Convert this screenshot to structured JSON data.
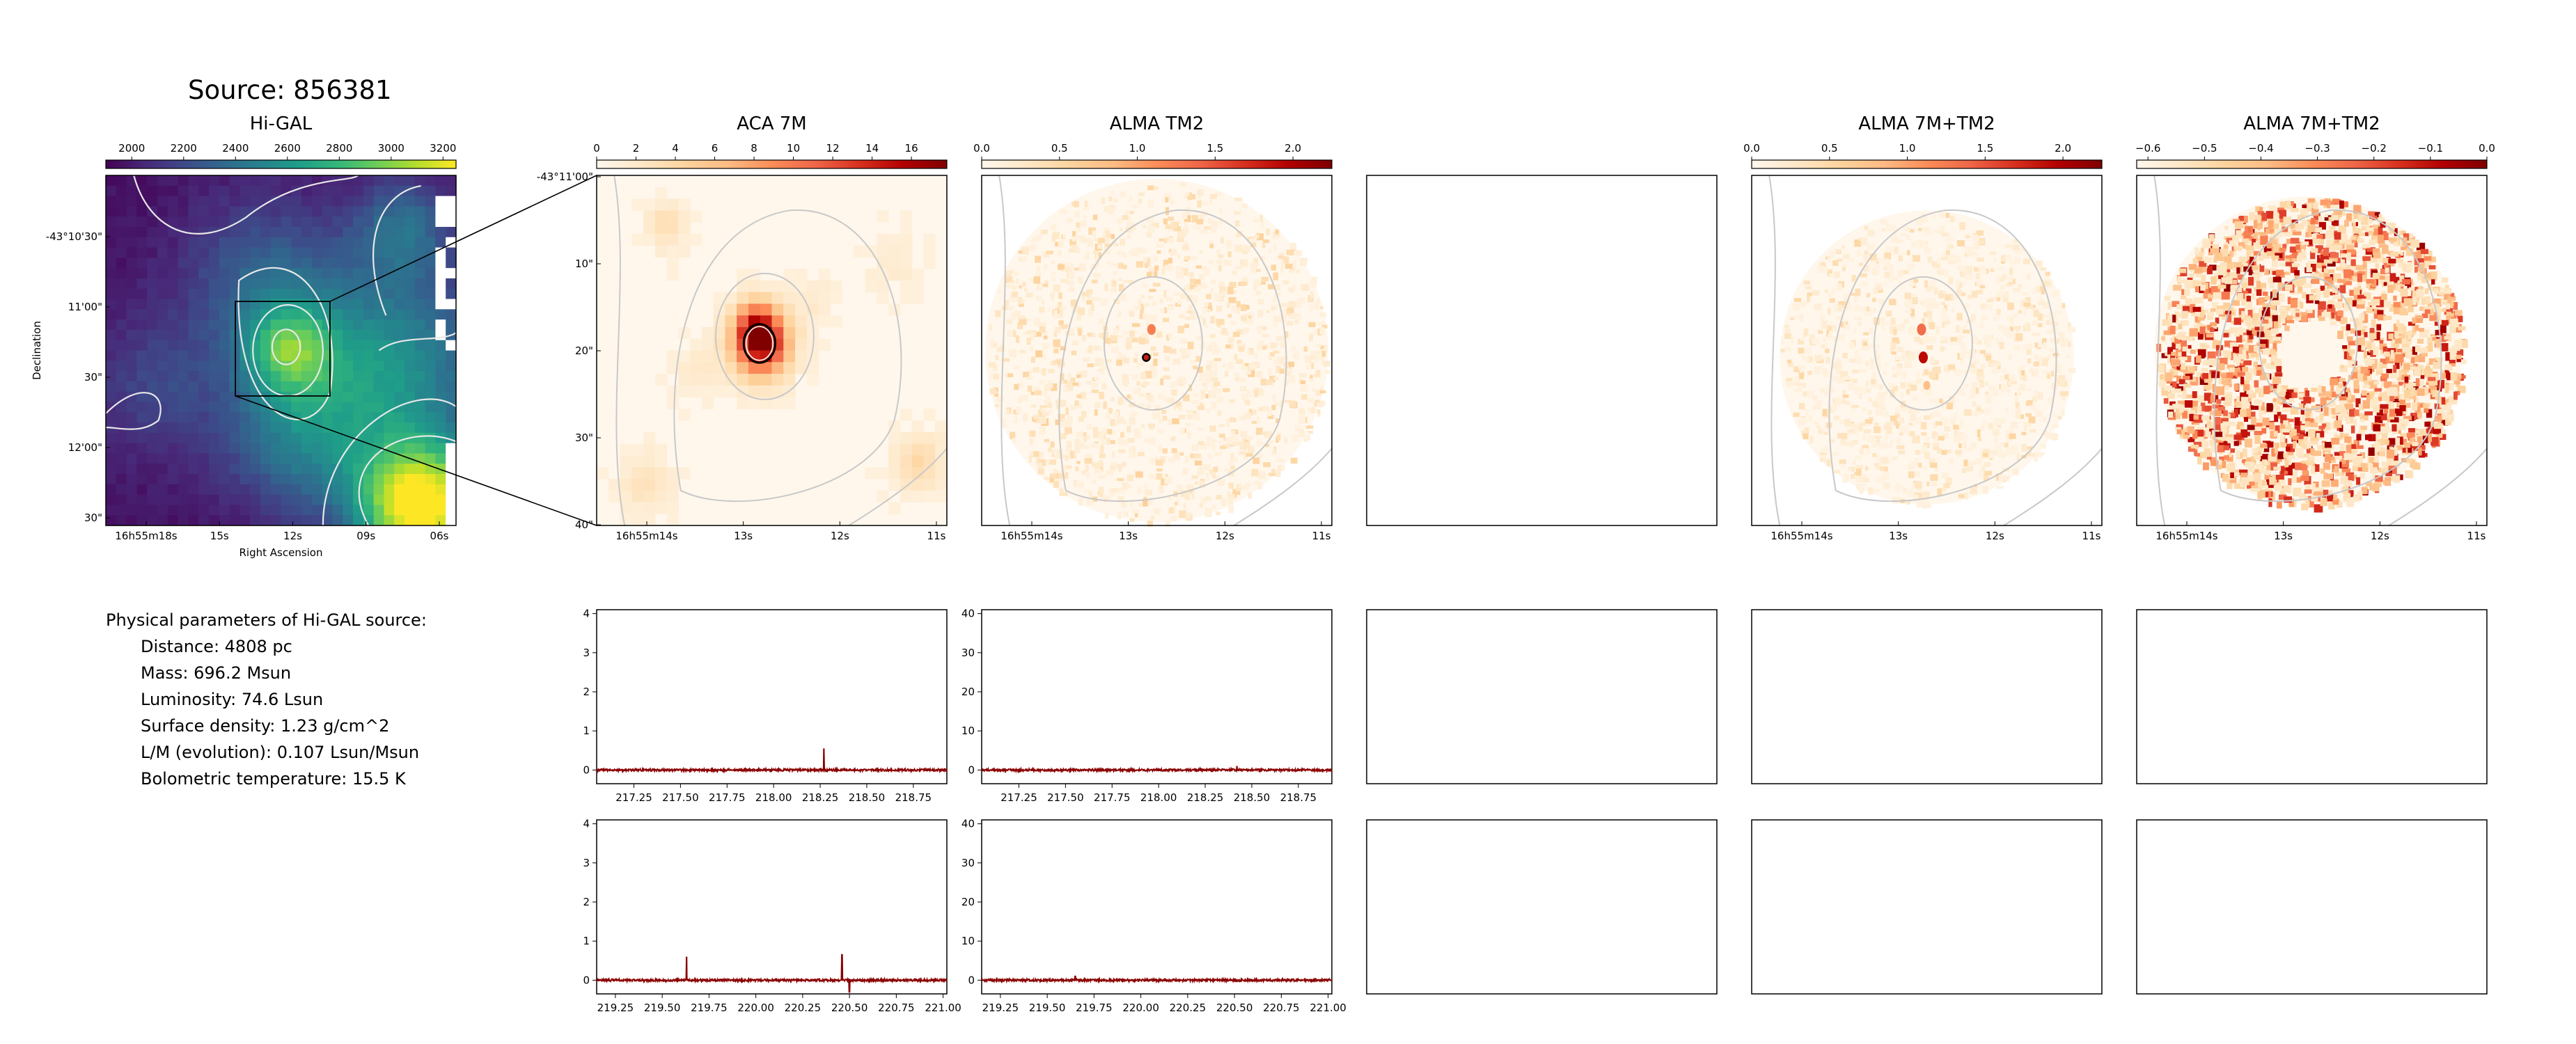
{
  "source_title": "Source: 856381",
  "params": {
    "heading": "Physical parameters of Hi-GAL source:",
    "rows": [
      "Distance: 4808 pc",
      "Mass: 696.2 Msun",
      "Luminosity: 74.6 Lsun",
      "Surface density: 1.23 g/cm^2",
      "L/M (evolution): 0.107 Lsun/Msun",
      "Bolometric temperature: 15.5 K"
    ]
  },
  "colors": {
    "viridis": [
      "#440154",
      "#482878",
      "#3e4989",
      "#31688e",
      "#26828e",
      "#1f9e89",
      "#35b779",
      "#6ece58",
      "#b5de2b",
      "#fde725"
    ],
    "orrd": [
      "#fff7ec",
      "#fee8c8",
      "#fdd49e",
      "#fdbb84",
      "#fc8d59",
      "#ef6548",
      "#d7301f",
      "#b30000",
      "#7f0000"
    ],
    "spectrum_line": "#8b0000",
    "contour_light": "#c8c8c8",
    "contour_white": "#e8e8e8"
  },
  "chart_data": [
    {
      "type": "heatmap",
      "panel": "higal",
      "title": "Hi-GAL",
      "xlabel": "Right Ascension",
      "ylabel": "Declination",
      "colorbar_ticks": [
        "2000",
        "2200",
        "2400",
        "2600",
        "2800",
        "3000",
        "3200"
      ],
      "colorbar_range": [
        1900,
        3250
      ],
      "x_ticks": [
        "16h55m18s",
        "15s",
        "12s",
        "09s",
        "06s"
      ],
      "y_ticks": [
        "-43°10'30\"",
        "11'00\"",
        "30\"",
        "12'00\"",
        "30\""
      ]
    },
    {
      "type": "heatmap",
      "panel": "aca7m",
      "title": "ACA 7M",
      "colorbar_ticks": [
        "0",
        "2",
        "4",
        "6",
        "8",
        "10",
        "12",
        "14",
        "16"
      ],
      "colorbar_range": [
        0,
        17.8
      ],
      "x_ticks": [
        "16h55m14s",
        "13s",
        "12s",
        "11s"
      ],
      "y_ticks": [
        "-43°11'00\"",
        "10\"",
        "20\"",
        "30\"",
        "40\""
      ]
    },
    {
      "type": "heatmap",
      "panel": "tm2",
      "title": "ALMA TM2",
      "colorbar_ticks": [
        "0.0",
        "0.5",
        "1.0",
        "1.5",
        "2.0"
      ],
      "colorbar_range": [
        0,
        2.25
      ],
      "x_ticks": [
        "16h55m14s",
        "13s",
        "12s",
        "11s"
      ]
    },
    {
      "type": "heatmap",
      "panel": "combined",
      "title": "ALMA 7M+TM2",
      "colorbar_ticks": [
        "0.0",
        "0.5",
        "1.0",
        "1.5",
        "2.0"
      ],
      "colorbar_range": [
        0,
        2.25
      ],
      "x_ticks": [
        "16h55m14s",
        "13s",
        "12s",
        "11s"
      ]
    },
    {
      "type": "heatmap",
      "panel": "residual",
      "title": "ALMA 7M+TM2",
      "colorbar_ticks": [
        "−0.6",
        "−0.5",
        "−0.4",
        "−0.3",
        "−0.2",
        "−0.1",
        "0.0"
      ],
      "colorbar_range": [
        -0.62,
        0
      ],
      "x_ticks": [
        "16h55m14s",
        "13s",
        "12s",
        "11s"
      ]
    },
    {
      "type": "line",
      "panel": "spec_aca_1",
      "x_ticks": [
        "217.25",
        "217.50",
        "217.75",
        "218.00",
        "218.25",
        "218.50",
        "218.75"
      ],
      "xlim": [
        217.05,
        218.93
      ],
      "y_ticks": [
        "0",
        "1",
        "2",
        "3",
        "4"
      ],
      "ylim": [
        -0.35,
        4.1
      ],
      "spikes": [
        {
          "x": 218.27,
          "y": 0.55
        }
      ]
    },
    {
      "type": "line",
      "panel": "spec_tm2_1",
      "x_ticks": [
        "217.25",
        "217.50",
        "217.75",
        "218.00",
        "218.25",
        "218.50",
        "218.75"
      ],
      "xlim": [
        217.05,
        218.93
      ],
      "y_ticks": [
        "0",
        "10",
        "20",
        "30",
        "40"
      ],
      "ylim": [
        -3.5,
        41
      ],
      "spikes": [
        {
          "x": 218.42,
          "y": 1.0
        }
      ]
    },
    {
      "type": "line",
      "panel": "spec_aca_2",
      "x_ticks": [
        "219.25",
        "219.50",
        "219.75",
        "220.00",
        "220.25",
        "220.50",
        "220.75",
        "221.00"
      ],
      "xlim": [
        219.15,
        221.02
      ],
      "y_ticks": [
        "0",
        "1",
        "2",
        "3",
        "4"
      ],
      "ylim": [
        -0.35,
        4.1
      ],
      "spikes": [
        {
          "x": 219.63,
          "y": 0.6
        },
        {
          "x": 220.46,
          "y": 0.65
        },
        {
          "x": 220.5,
          "y": -0.3
        }
      ]
    },
    {
      "type": "line",
      "panel": "spec_tm2_2",
      "x_ticks": [
        "219.25",
        "219.50",
        "219.75",
        "220.00",
        "220.25",
        "220.50",
        "220.75",
        "221.00"
      ],
      "xlim": [
        219.15,
        221.02
      ],
      "y_ticks": [
        "0",
        "10",
        "20",
        "30",
        "40"
      ],
      "ylim": [
        -3.5,
        41
      ],
      "spikes": [
        {
          "x": 219.65,
          "y": 1.0
        }
      ]
    }
  ]
}
